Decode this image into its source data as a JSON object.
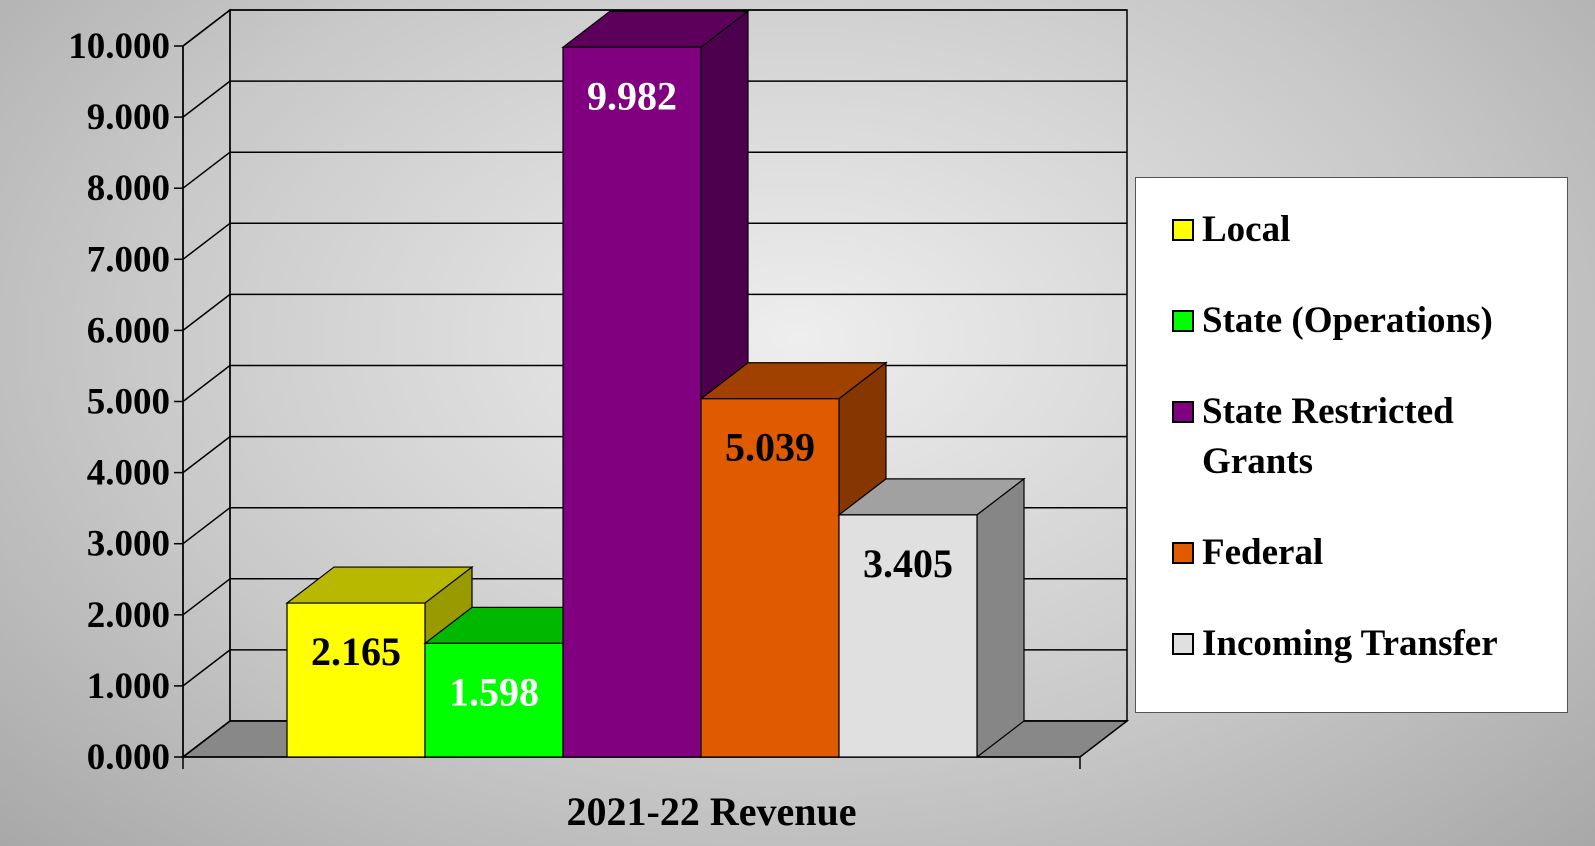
{
  "chart_data": {
    "type": "bar",
    "categories": [
      "2021-22 Revenue"
    ],
    "series": [
      {
        "name": "Local",
        "color": "#ffff00",
        "values": [
          2.165
        ]
      },
      {
        "name": "State (Operations)",
        "color": "#00ff00",
        "values": [
          1.598
        ]
      },
      {
        "name": "State Restricted Grants",
        "color": "#800080",
        "values": [
          9.982
        ]
      },
      {
        "name": "Federal",
        "color": "#e05a00",
        "values": [
          5.039
        ]
      },
      {
        "name": "Incoming Transfer",
        "color": "#e0e0e0",
        "values": [
          3.405
        ]
      }
    ],
    "ylim": [
      0,
      10
    ],
    "yticks": [
      {
        "value": 0,
        "label": "0.000"
      },
      {
        "value": 1,
        "label": "1.000"
      },
      {
        "value": 2,
        "label": "2.000"
      },
      {
        "value": 3,
        "label": "3.000"
      },
      {
        "value": 4,
        "label": "4.000"
      },
      {
        "value": 5,
        "label": "5.000"
      },
      {
        "value": 6,
        "label": "6.000"
      },
      {
        "value": 7,
        "label": "7.000"
      },
      {
        "value": 8,
        "label": "8.000"
      },
      {
        "value": 9,
        "label": "9.000"
      },
      {
        "value": 10,
        "label": "10.000"
      }
    ],
    "grid": true,
    "legend": "right"
  }
}
